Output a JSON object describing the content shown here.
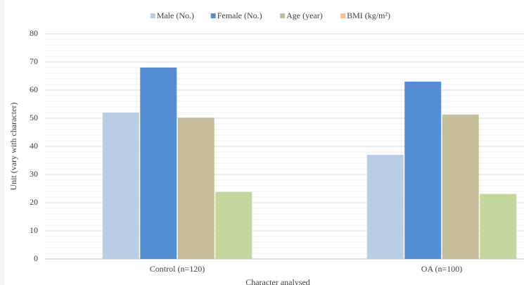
{
  "chart_data": {
    "type": "bar",
    "x_label": "Character analysed",
    "y_label": "Unit (vary with character)",
    "categories": [
      "Control (n=120)",
      "OA (n=100)"
    ],
    "series": [
      {
        "name": "Male (No.)",
        "color": "#b9cde5",
        "values": [
          52,
          37
        ]
      },
      {
        "name": "Female (No.)",
        "color": "#558ed5",
        "values": [
          68,
          63
        ]
      },
      {
        "name": "Age (year)",
        "color": "#c4bd97",
        "values": [
          50.2,
          51.3
        ]
      },
      {
        "name": "BMI (kg/m²)",
        "color": "#c3d69b",
        "legend_color": "#fac090",
        "values": [
          23.8,
          23.1
        ]
      }
    ],
    "ylim": [
      0,
      80
    ],
    "yticks": [
      0,
      10,
      20,
      30,
      40,
      50,
      60,
      70,
      80
    ],
    "grid": true,
    "legend": "top"
  }
}
